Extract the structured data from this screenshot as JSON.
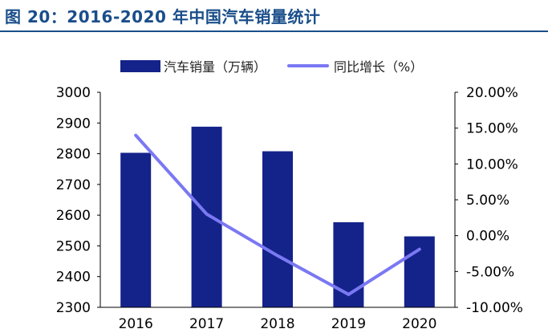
{
  "title": "图 20：2016-2020 年中国汽车销量统计",
  "colors": {
    "title": "#1a4e8a",
    "bar": "#14238a",
    "line": "#7b78f3",
    "axis": "#000000"
  },
  "chart_data": {
    "type": "bar",
    "categories": [
      "2016",
      "2017",
      "2018",
      "2019",
      "2020"
    ],
    "series": [
      {
        "name": "汽车销量（万辆）",
        "type": "bar",
        "axis": "left",
        "values": [
          2803,
          2888,
          2808,
          2577,
          2531
        ]
      },
      {
        "name": "同比增长（%）",
        "type": "line",
        "axis": "right",
        "values": [
          14.0,
          3.0,
          -2.8,
          -8.2,
          -1.9
        ]
      }
    ],
    "y_left": {
      "lim": [
        2300,
        3000
      ],
      "ticks": [
        "2300",
        "2400",
        "2500",
        "2600",
        "2700",
        "2800",
        "2900",
        "3000"
      ]
    },
    "y_right": {
      "lim": [
        -10,
        20
      ],
      "ticks": [
        "-10.00%",
        "-5.00%",
        "0.00%",
        "5.00%",
        "10.00%",
        "15.00%",
        "20.00%"
      ]
    },
    "legend_position": "top",
    "grid": false
  }
}
